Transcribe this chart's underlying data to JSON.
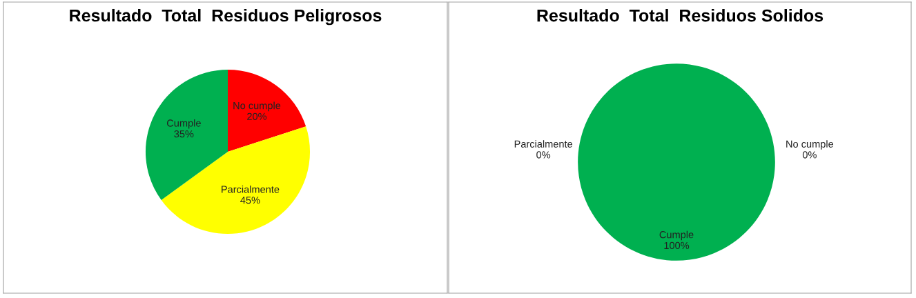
{
  "chart_data": [
    {
      "type": "pie",
      "title": "Resultado  Total  Residuos Peligrosos",
      "categories": [
        "No cumple",
        "Parcialmente",
        "Cumple"
      ],
      "values": [
        20,
        45,
        35
      ],
      "colors": [
        "#ff0000",
        "#ffff00",
        "#00b050"
      ],
      "value_labels": [
        "20%",
        "45%",
        "35%"
      ],
      "legend": false
    },
    {
      "type": "pie",
      "title": "Resultado  Total  Residuos Solidos",
      "categories": [
        "No cumple",
        "Parcialmente",
        "Cumple"
      ],
      "values": [
        0,
        0,
        100
      ],
      "colors": [
        "#ff0000",
        "#ffff00",
        "#00b050"
      ],
      "value_labels": [
        "0%",
        "0%",
        "100%"
      ],
      "legend": false
    }
  ]
}
